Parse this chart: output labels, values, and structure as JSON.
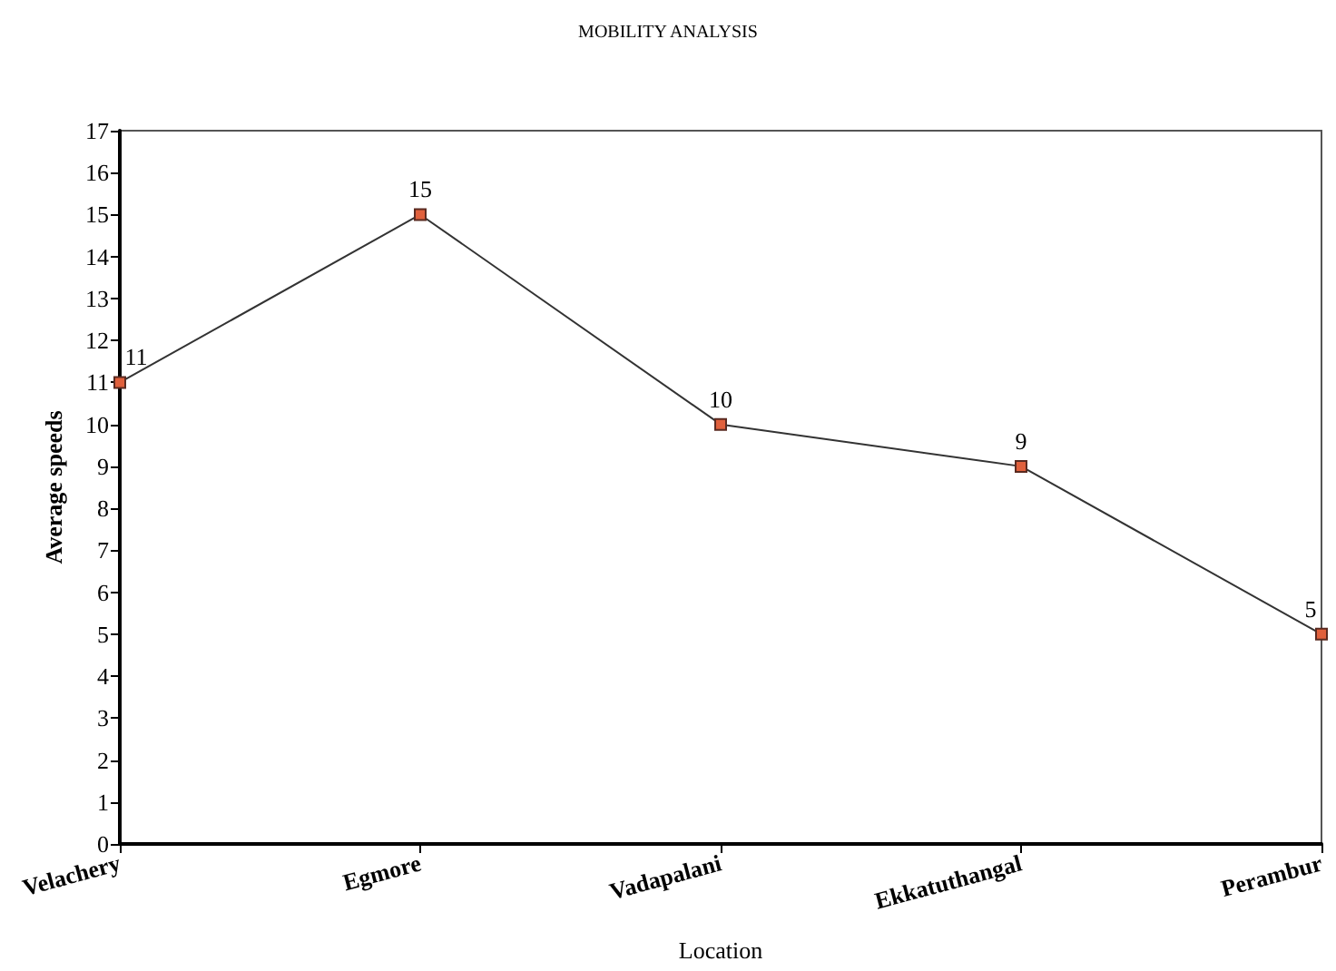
{
  "chart_data": {
    "type": "line",
    "title": "MOBILITY ANALYSIS",
    "xlabel": "Location",
    "ylabel": "Average speeds",
    "categories": [
      "Velachery",
      "Egmore",
      "Vadapalani",
      "Ekkatuthangal",
      "Perambur"
    ],
    "series": [
      {
        "color": "#e0603c",
        "values": [
          11,
          15,
          10,
          9,
          5
        ]
      }
    ],
    "ylim": [
      0,
      17
    ],
    "yticks": [
      0,
      1,
      2,
      3,
      4,
      5,
      6,
      7,
      8,
      9,
      10,
      11,
      12,
      13,
      14,
      15,
      16,
      17
    ],
    "grid": false,
    "marker": "square",
    "line_style": "solid",
    "data_labels": true
  }
}
